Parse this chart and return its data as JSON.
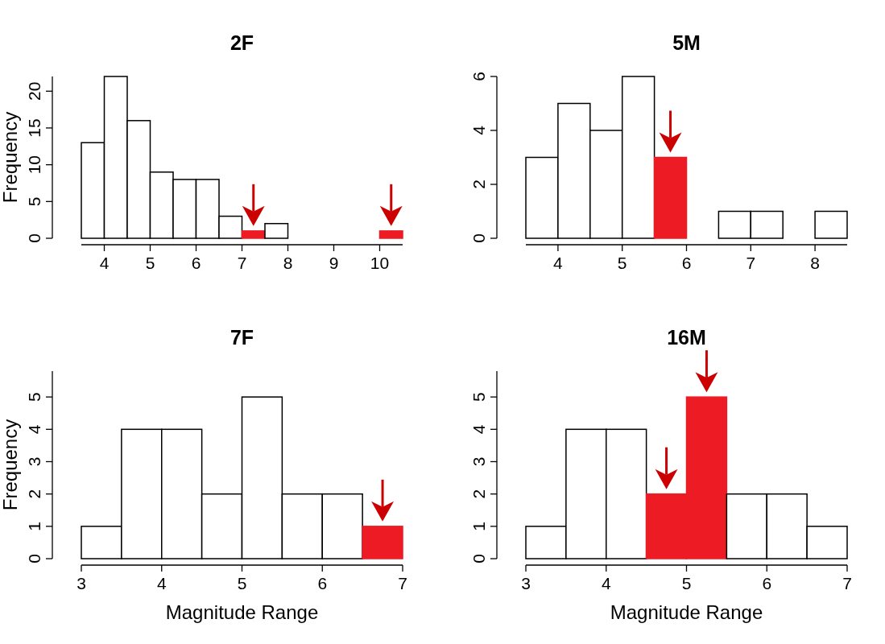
{
  "chart_data": [
    {
      "type": "histogram",
      "title": "2F",
      "ylabel": "Frequency",
      "bins": [
        3.5,
        4,
        4.5,
        5,
        5.5,
        6,
        6.5,
        7,
        7.5,
        8,
        8.5,
        9,
        9.5,
        10,
        10.5
      ],
      "values": [
        13,
        22,
        16,
        9,
        8,
        8,
        3,
        1,
        2,
        0,
        0,
        0,
        0,
        1
      ],
      "colors": [
        "#ffffff",
        "#ffffff",
        "#ffffff",
        "#ffffff",
        "#ffffff",
        "#ffffff",
        "#ffffff",
        "#ed1c24",
        "#ffffff",
        "#ffffff",
        "#ffffff",
        "#ffffff",
        "#ffffff",
        "#ed1c24"
      ],
      "xlim": [
        3.5,
        10.5
      ],
      "ylim": [
        0,
        22
      ],
      "xticks": [
        4,
        5,
        6,
        7,
        8,
        9,
        10
      ],
      "yticks": [
        0,
        5,
        10,
        15,
        20
      ]
    },
    {
      "type": "histogram",
      "title": "5M",
      "bins": [
        3.5,
        4,
        4.5,
        5,
        5.5,
        6,
        6.5,
        7,
        7.5,
        8,
        8.5
      ],
      "values": [
        3,
        5,
        4,
        6,
        3,
        0,
        1,
        1,
        0,
        1
      ],
      "colors": [
        "#ffffff",
        "#ffffff",
        "#ffffff",
        "#ffffff",
        "#ed1c24",
        "#ffffff",
        "#ffffff",
        "#ffffff",
        "#ffffff",
        "#ffffff"
      ],
      "xlim": [
        3.5,
        8.5
      ],
      "ylim": [
        0,
        6
      ],
      "xticks": [
        4,
        5,
        6,
        7,
        8
      ],
      "yticks": [
        0,
        2,
        4,
        6
      ]
    },
    {
      "type": "histogram",
      "title": "7F",
      "xlabel": "Magnitude Range",
      "ylabel": "Frequency",
      "bins": [
        3,
        3.5,
        4,
        4.5,
        5,
        5.5,
        6,
        6.5,
        7
      ],
      "values": [
        1,
        4,
        4,
        2,
        5,
        2,
        2,
        1
      ],
      "colors": [
        "#ffffff",
        "#ffffff",
        "#ffffff",
        "#ffffff",
        "#ffffff",
        "#ffffff",
        "#ffffff",
        "#ed1c24"
      ],
      "xlim": [
        3,
        7
      ],
      "ylim": [
        0,
        5.8
      ],
      "xticks": [
        3,
        4,
        5,
        6,
        7
      ],
      "yticks": [
        0,
        1,
        2,
        3,
        4,
        5
      ]
    },
    {
      "type": "histogram",
      "title": "16M",
      "xlabel": "Magnitude Range",
      "bins": [
        3,
        3.5,
        4,
        4.5,
        5,
        5.5,
        6,
        6.5,
        7
      ],
      "values": [
        1,
        4,
        4,
        2,
        5,
        2,
        2,
        1
      ],
      "colors": [
        "#ffffff",
        "#ffffff",
        "#ffffff",
        "#ed1c24",
        "#ed1c24",
        "#ffffff",
        "#ffffff",
        "#ffffff"
      ],
      "xlim": [
        3,
        7
      ],
      "ylim": [
        0,
        5.8
      ],
      "xticks": [
        3,
        4,
        5,
        6,
        7
      ],
      "yticks": [
        0,
        1,
        2,
        3,
        4,
        5
      ]
    }
  ]
}
